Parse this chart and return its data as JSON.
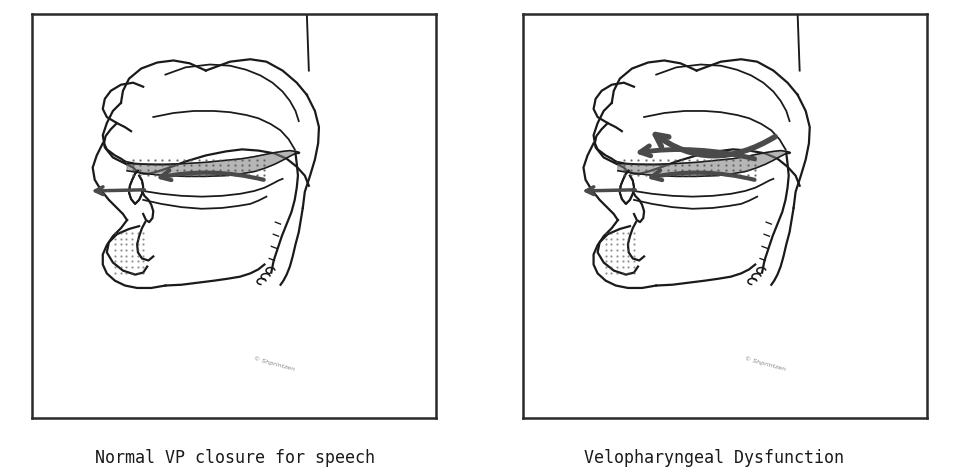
{
  "title_left": "Normal VP closure for speech",
  "title_right": "Velopharyngeal Dysfunction",
  "bg_color": "#ffffff",
  "lc": "#1a1a1a",
  "gray_fill": "#7a7a7a",
  "arrow_color": "#4a4a4a",
  "fig_width": 9.59,
  "fig_height": 4.77,
  "title_fontsize": 12,
  "dpi": 100
}
